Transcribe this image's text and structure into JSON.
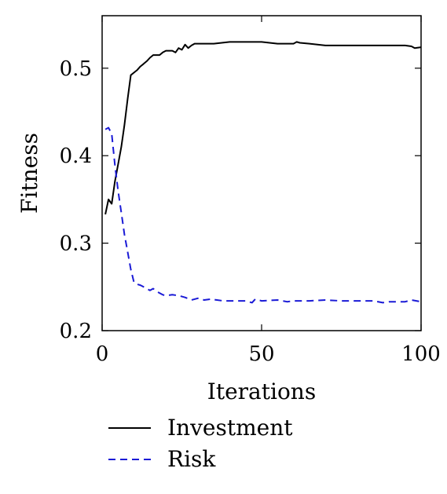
{
  "chart_data": {
    "type": "line",
    "title": "",
    "xlabel": "Iterations",
    "ylabel": "Fitness",
    "xlim": [
      0,
      100
    ],
    "ylim": [
      0.2,
      0.56
    ],
    "xticks": [
      0,
      50,
      100
    ],
    "xtick_labels": [
      "0",
      "50",
      "100"
    ],
    "yticks": [
      0.2,
      0.3,
      0.4,
      0.5
    ],
    "ytick_labels": [
      "0.2",
      "0.3",
      "0.4",
      "0.5"
    ],
    "grid": false,
    "legend_position": "below",
    "series": [
      {
        "name": "Investment",
        "color": "#000000",
        "style": "solid",
        "x": [
          1,
          2,
          3,
          4,
          5,
          6,
          7,
          8,
          9,
          10,
          11,
          12,
          13,
          14,
          15,
          16,
          17,
          18,
          19,
          20,
          21,
          22,
          23,
          24,
          25,
          26,
          27,
          28,
          29,
          30,
          35,
          40,
          45,
          50,
          55,
          60,
          61,
          62,
          65,
          70,
          75,
          80,
          85,
          90,
          95,
          97,
          98,
          100
        ],
        "y": [
          0.333,
          0.35,
          0.345,
          0.37,
          0.39,
          0.41,
          0.435,
          0.465,
          0.492,
          0.495,
          0.498,
          0.502,
          0.505,
          0.508,
          0.512,
          0.515,
          0.515,
          0.515,
          0.518,
          0.52,
          0.52,
          0.52,
          0.518,
          0.523,
          0.521,
          0.527,
          0.523,
          0.526,
          0.528,
          0.528,
          0.528,
          0.53,
          0.53,
          0.53,
          0.528,
          0.528,
          0.53,
          0.529,
          0.528,
          0.526,
          0.526,
          0.526,
          0.526,
          0.526,
          0.526,
          0.525,
          0.523,
          0.524
        ]
      },
      {
        "name": "Risk",
        "color": "#1a1ad6",
        "style": "dashed",
        "x": [
          1,
          2,
          3,
          4,
          5,
          6,
          7,
          8,
          9,
          10,
          11,
          12,
          13,
          14,
          15,
          16,
          17,
          18,
          19,
          20,
          22,
          24,
          26,
          28,
          30,
          32,
          34,
          36,
          38,
          40,
          45,
          47,
          48,
          50,
          55,
          58,
          60,
          65,
          70,
          75,
          80,
          85,
          88,
          90,
          95,
          97,
          100
        ],
        "y": [
          0.43,
          0.432,
          0.425,
          0.39,
          0.36,
          0.335,
          0.31,
          0.29,
          0.27,
          0.255,
          0.253,
          0.252,
          0.25,
          0.248,
          0.246,
          0.248,
          0.245,
          0.243,
          0.241,
          0.24,
          0.241,
          0.24,
          0.238,
          0.235,
          0.237,
          0.235,
          0.236,
          0.235,
          0.234,
          0.234,
          0.234,
          0.232,
          0.236,
          0.234,
          0.235,
          0.233,
          0.234,
          0.234,
          0.235,
          0.234,
          0.234,
          0.234,
          0.232,
          0.233,
          0.233,
          0.235,
          0.233
        ]
      }
    ]
  }
}
